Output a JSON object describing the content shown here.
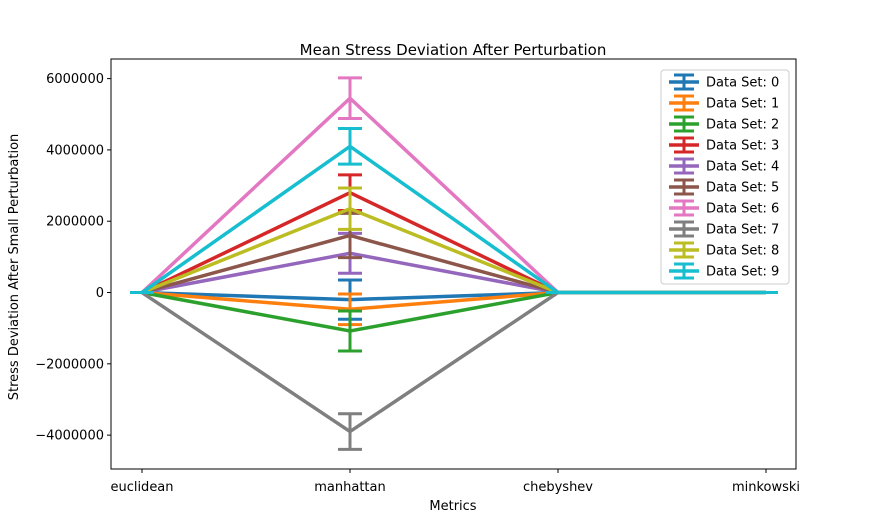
{
  "chart_data": {
    "type": "line",
    "title": "Mean Stress Deviation After Perturbation",
    "xlabel": "Metrics",
    "ylabel": "Stress Deviation After Small Perturbation",
    "categories": [
      "euclidean",
      "manhattan",
      "chebyshev",
      "minkowski"
    ],
    "ylim": [
      -4950000,
      6550000
    ],
    "yticks": [
      -4000000,
      -2000000,
      0,
      2000000,
      4000000,
      6000000
    ],
    "ytick_labels": [
      "−4000000",
      "−2000000",
      "0",
      "2000000",
      "4000000",
      "6000000"
    ],
    "legend_position": "top-right",
    "series": [
      {
        "name": "Data Set: 0",
        "color": "#1f77b4",
        "values": [
          0,
          -200000,
          0,
          0
        ],
        "errors": [
          0,
          550000,
          0,
          0
        ]
      },
      {
        "name": "Data Set: 1",
        "color": "#ff7f0e",
        "values": [
          0,
          -470000,
          0,
          0
        ],
        "errors": [
          0,
          430000,
          0,
          0
        ]
      },
      {
        "name": "Data Set: 2",
        "color": "#2ca02c",
        "values": [
          0,
          -1080000,
          0,
          0
        ],
        "errors": [
          0,
          560000,
          0,
          0
        ]
      },
      {
        "name": "Data Set: 3",
        "color": "#d62728",
        "values": [
          0,
          2800000,
          0,
          0
        ],
        "errors": [
          0,
          500000,
          0,
          0
        ]
      },
      {
        "name": "Data Set: 4",
        "color": "#9467bd",
        "values": [
          0,
          1100000,
          0,
          0
        ],
        "errors": [
          0,
          560000,
          0,
          0
        ]
      },
      {
        "name": "Data Set: 5",
        "color": "#8c564b",
        "values": [
          0,
          1600000,
          0,
          0
        ],
        "errors": [
          0,
          620000,
          0,
          0
        ]
      },
      {
        "name": "Data Set: 6",
        "color": "#e377c2",
        "values": [
          0,
          5450000,
          0,
          0
        ],
        "errors": [
          0,
          570000,
          0,
          0
        ]
      },
      {
        "name": "Data Set: 7",
        "color": "#7f7f7f",
        "values": [
          0,
          -3900000,
          0,
          0
        ],
        "errors": [
          0,
          500000,
          0,
          0
        ]
      },
      {
        "name": "Data Set: 8",
        "color": "#bcbd22",
        "values": [
          0,
          2350000,
          0,
          0
        ],
        "errors": [
          0,
          580000,
          0,
          0
        ]
      },
      {
        "name": "Data Set: 9",
        "color": "#17becf",
        "values": [
          0,
          4100000,
          0,
          0
        ],
        "errors": [
          0,
          500000,
          0,
          0
        ]
      }
    ]
  }
}
